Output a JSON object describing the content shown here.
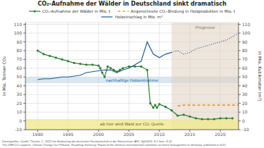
{
  "chart_data": {
    "type": "line",
    "title": "CO₂-Aufnahme der Wälder in Deutschland sinkt dramatisch",
    "y_label": "in Mio. Tonnen CO₂",
    "y2_label": "in Mio. Kubikmeter (m³)",
    "xlim": [
      1988,
      2023
    ],
    "xticks": [
      1990,
      1995,
      2000,
      2005,
      2010,
      2015,
      2020
    ],
    "ylim": [
      -10,
      112
    ],
    "yticks": [
      -10,
      0,
      10,
      20,
      30,
      40,
      50,
      60,
      70,
      80,
      90,
      100,
      110
    ],
    "y2lim": [
      -10,
      112
    ],
    "y2ticks": [
      -10,
      0,
      10,
      20,
      30,
      40,
      50,
      60,
      70,
      80,
      90,
      100,
      110
    ],
    "grid": true,
    "legend": "top",
    "series": [
      {
        "name": "CO₂-Aufnahme der Wälder in Mio. t",
        "color": "#2e7d32",
        "marker": "o",
        "line_style": "solid",
        "x": [
          1990,
          1991,
          1992,
          1993,
          1994,
          1995,
          1996,
          1997,
          1998,
          1999,
          2000,
          2000.3,
          2000.6,
          2001,
          2001.5,
          2002,
          2002.5,
          2003,
          2003.5,
          2004,
          2005,
          2006,
          2007,
          2008,
          2008.5,
          2009,
          2009.3,
          2009.6,
          2010,
          2011,
          2012,
          2013,
          2014,
          2015,
          2016,
          2017,
          2018,
          2019,
          2020,
          2021,
          2022
        ],
        "values": [
          80,
          76,
          74,
          72,
          70,
          68,
          66,
          65,
          64,
          64,
          63,
          60,
          55,
          50,
          62,
          60,
          58,
          56,
          58,
          60,
          62,
          62,
          62,
          58,
          20,
          15,
          18,
          15,
          19,
          16,
          12,
          6,
          7,
          5,
          3,
          2,
          2,
          2,
          3,
          3,
          3
        ]
      },
      {
        "name": "Angerechnete CO₂-Bindung in Holzprodukten in Mio. t",
        "color": "#d4820a",
        "line_style": "dashed",
        "x": [
          2013,
          2014,
          2015,
          2016,
          2017,
          2018,
          2019,
          2020,
          2021,
          2022,
          2023
        ],
        "values": [
          17,
          18,
          18,
          18,
          18,
          18,
          18,
          18,
          18,
          18,
          18
        ]
      },
      {
        "name": "Holzeinschlag in Mio. m³",
        "color": "#1a5a96",
        "line_style": "solid",
        "axis": "y2",
        "dotted_from": 2012,
        "x": [
          1990,
          1991,
          1992,
          1993,
          1994,
          1995,
          1996,
          1997,
          1998,
          1999,
          2000,
          2001,
          2002,
          2003,
          2004,
          2005,
          2006,
          2007,
          2008,
          2009,
          2010,
          2011,
          2012,
          2013,
          2014,
          2015,
          2016,
          2017,
          2018,
          2019,
          2020,
          2021,
          2022,
          2023
        ],
        "values": [
          47,
          48,
          48,
          49,
          50,
          50,
          51,
          52,
          55,
          56,
          57,
          58,
          58,
          55,
          58,
          60,
          64,
          68,
          90,
          76,
          72,
          76,
          78,
          80,
          76,
          78,
          82,
          84,
          86,
          88,
          90,
          92,
          96,
          100
        ]
      }
    ],
    "bands": [
      {
        "label": "nachhaltige Holzentnahme",
        "axis": "y",
        "from": 43,
        "to": 50,
        "color": "#b8d4e8"
      },
      {
        "label": "Prognose",
        "axis": "x",
        "from": 2012,
        "to": 2023,
        "color": "#e0cfc0"
      },
      {
        "label": "ab hier wird Wald zur CO₂ Quelle",
        "axis": "y",
        "from": -10,
        "to": 2,
        "color": "#f0e890"
      }
    ],
    "footnote": [
      "Datenquellen: Quelle: Thünen, J., 2023 Die Bedeutung der deutschen Forstwirtschaft in der Klimaschutz; AFZ, Spl/2023, S.1 forts. S.16",
      "The UNFCCC explorer; Climate Change Our Pollution, Roadmap Germany; Report of the German environmental committee on forest management in Germany; published in 2012"
    ]
  }
}
